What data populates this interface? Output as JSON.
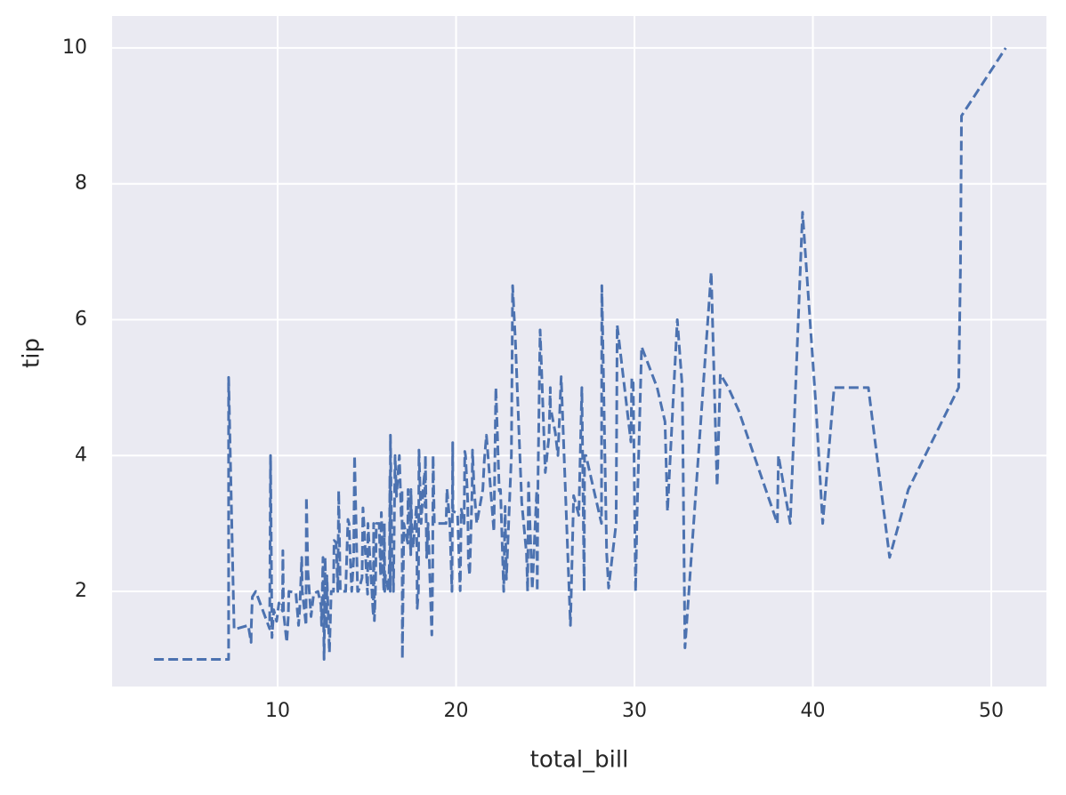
{
  "chart_data": {
    "type": "line",
    "xlabel": "total_bill",
    "ylabel": "tip",
    "xlim": [
      0.72,
      53.09
    ],
    "ylim": [
      0.6,
      10.47
    ],
    "xticks": [
      10,
      20,
      30,
      40,
      50
    ],
    "yticks": [
      2,
      4,
      6,
      8,
      10
    ],
    "grid": true,
    "color": "#4c72b0",
    "linestyle": "dashed",
    "x": [
      3.07,
      5.75,
      7.25,
      7.25,
      7.51,
      7.56,
      8.35,
      8.51,
      8.52,
      8.58,
      8.77,
      9.55,
      9.6,
      9.68,
      9.78,
      9.94,
      10.07,
      10.27,
      10.29,
      10.33,
      10.34,
      10.51,
      10.59,
      10.63,
      11.02,
      11.17,
      11.24,
      11.35,
      11.38,
      11.59,
      11.61,
      11.69,
      11.87,
      12.02,
      12.26,
      12.43,
      12.46,
      12.54,
      12.6,
      12.66,
      12.69,
      12.74,
      12.76,
      12.9,
      13.0,
      13.13,
      13.16,
      13.28,
      13.37,
      13.39,
      13.42,
      13.51,
      13.81,
      13.94,
      14.0,
      14.07,
      14.15,
      14.26,
      14.31,
      14.48,
      14.52,
      14.73,
      14.78,
      14.83,
      15.01,
      15.04,
      15.06,
      15.36,
      15.38,
      15.42,
      15.48,
      15.53,
      15.69,
      15.77,
      15.81,
      15.95,
      15.98,
      16.0,
      16.04,
      16.21,
      16.27,
      16.29,
      16.31,
      16.32,
      16.4,
      16.45,
      16.49,
      16.58,
      16.66,
      16.82,
      16.93,
      16.97,
      16.99,
      17.07,
      17.29,
      17.31,
      17.46,
      17.47,
      17.51,
      17.59,
      17.78,
      17.81,
      17.82,
      17.89,
      17.92,
      18.04,
      18.15,
      18.24,
      18.26,
      18.28,
      18.29,
      18.35,
      18.43,
      18.64,
      18.69,
      18.71,
      18.78,
      19.44,
      19.49,
      19.65,
      19.77,
      19.81,
      19.82,
      20.08,
      20.23,
      20.27,
      20.29,
      20.45,
      20.49,
      20.53,
      20.65,
      20.69,
      20.76,
      20.9,
      20.92,
      21.01,
      21.16,
      21.5,
      21.58,
      21.7,
      22.12,
      22.23,
      22.42,
      22.49,
      22.67,
      22.75,
      22.76,
      22.82,
      23.1,
      23.17,
      23.33,
      23.68,
      23.95,
      24.01,
      24.06,
      24.27,
      24.52,
      24.55,
      24.59,
      24.71,
      25.0,
      25.21,
      25.28,
      25.29,
      25.56,
      25.71,
      25.89,
      26.41,
      26.59,
      26.86,
      26.88,
      27.05,
      27.18,
      27.2,
      27.28,
      28.15,
      28.17,
      28.44,
      28.55,
      28.97,
      29.03,
      29.8,
      29.85,
      29.93,
      30.06,
      30.14,
      30.4,
      31.27,
      31.71,
      31.85,
      32.4,
      32.68,
      32.83,
      34.3,
      34.63,
      34.65,
      34.81,
      35.26,
      35.83,
      38.01,
      38.07,
      38.73,
      39.42,
      40.17,
      40.55,
      41.19,
      43.11,
      44.3,
      45.35,
      48.17,
      48.27,
      48.33,
      50.81
    ],
    "values": [
      1.0,
      1.0,
      1.0,
      5.15,
      2.0,
      1.44,
      1.5,
      1.25,
      1.48,
      1.92,
      2.0,
      1.45,
      4.0,
      1.32,
      1.73,
      1.56,
      1.83,
      1.71,
      2.6,
      1.67,
      1.66,
      1.25,
      1.61,
      2.0,
      1.98,
      1.5,
      1.76,
      2.5,
      2.0,
      1.5,
      3.39,
      2.31,
      1.63,
      1.97,
      2.0,
      1.8,
      1.5,
      2.5,
      1.0,
      2.5,
      2.0,
      1.44,
      2.23,
      1.1,
      2.0,
      2.0,
      2.75,
      2.72,
      2.0,
      2.61,
      3.48,
      2.0,
      2.0,
      3.06,
      3.0,
      2.5,
      2.0,
      2.5,
      4.0,
      2.0,
      2.0,
      2.2,
      3.23,
      3.02,
      2.09,
      1.96,
      3.0,
      1.64,
      3.0,
      1.57,
      2.02,
      3.0,
      3.0,
      2.23,
      3.16,
      2.0,
      3.0,
      2.0,
      2.24,
      2.0,
      2.5,
      3.71,
      2.0,
      4.3,
      2.5,
      2.47,
      2.0,
      4.0,
      3.4,
      4.0,
      3.07,
      3.5,
      1.01,
      3.0,
      2.71,
      3.5,
      2.54,
      3.5,
      3.0,
      2.64,
      3.27,
      2.34,
      1.75,
      2.0,
      4.08,
      3.0,
      3.5,
      3.76,
      3.25,
      4.0,
      3.76,
      2.5,
      3.0,
      1.36,
      2.31,
      4.0,
      3.0,
      3.0,
      3.51,
      3.0,
      2.0,
      4.19,
      3.18,
      3.15,
      2.01,
      2.83,
      3.21,
      3.0,
      4.06,
      4.0,
      3.35,
      2.45,
      2.24,
      3.5,
      4.08,
      3.5,
      3.0,
      3.5,
      3.92,
      4.3,
      2.88,
      5.0,
      3.48,
      3.5,
      2.0,
      3.25,
      3.0,
      2.18,
      4.0,
      6.5,
      5.65,
      3.31,
      2.55,
      2.0,
      3.6,
      2.03,
      3.48,
      2.0,
      3.61,
      5.85,
      3.75,
      4.29,
      5.0,
      4.71,
      4.34,
      4.0,
      5.16,
      1.5,
      3.41,
      3.14,
      3.12,
      5.0,
      2.0,
      4.0,
      4.0,
      3.0,
      6.5,
      2.56,
      2.05,
      3.0,
      5.92,
      4.2,
      5.14,
      5.07,
      2.0,
      3.09,
      5.6,
      5.0,
      4.5,
      3.18,
      6.0,
      5.0,
      1.17,
      6.7,
      3.55,
      3.68,
      5.2,
      5.0,
      4.67,
      3.0,
      4.0,
      3.0,
      7.58,
      4.73,
      3.0,
      5.0,
      5.0,
      2.5,
      3.5,
      5.0,
      6.73,
      9.0,
      10.0
    ]
  }
}
